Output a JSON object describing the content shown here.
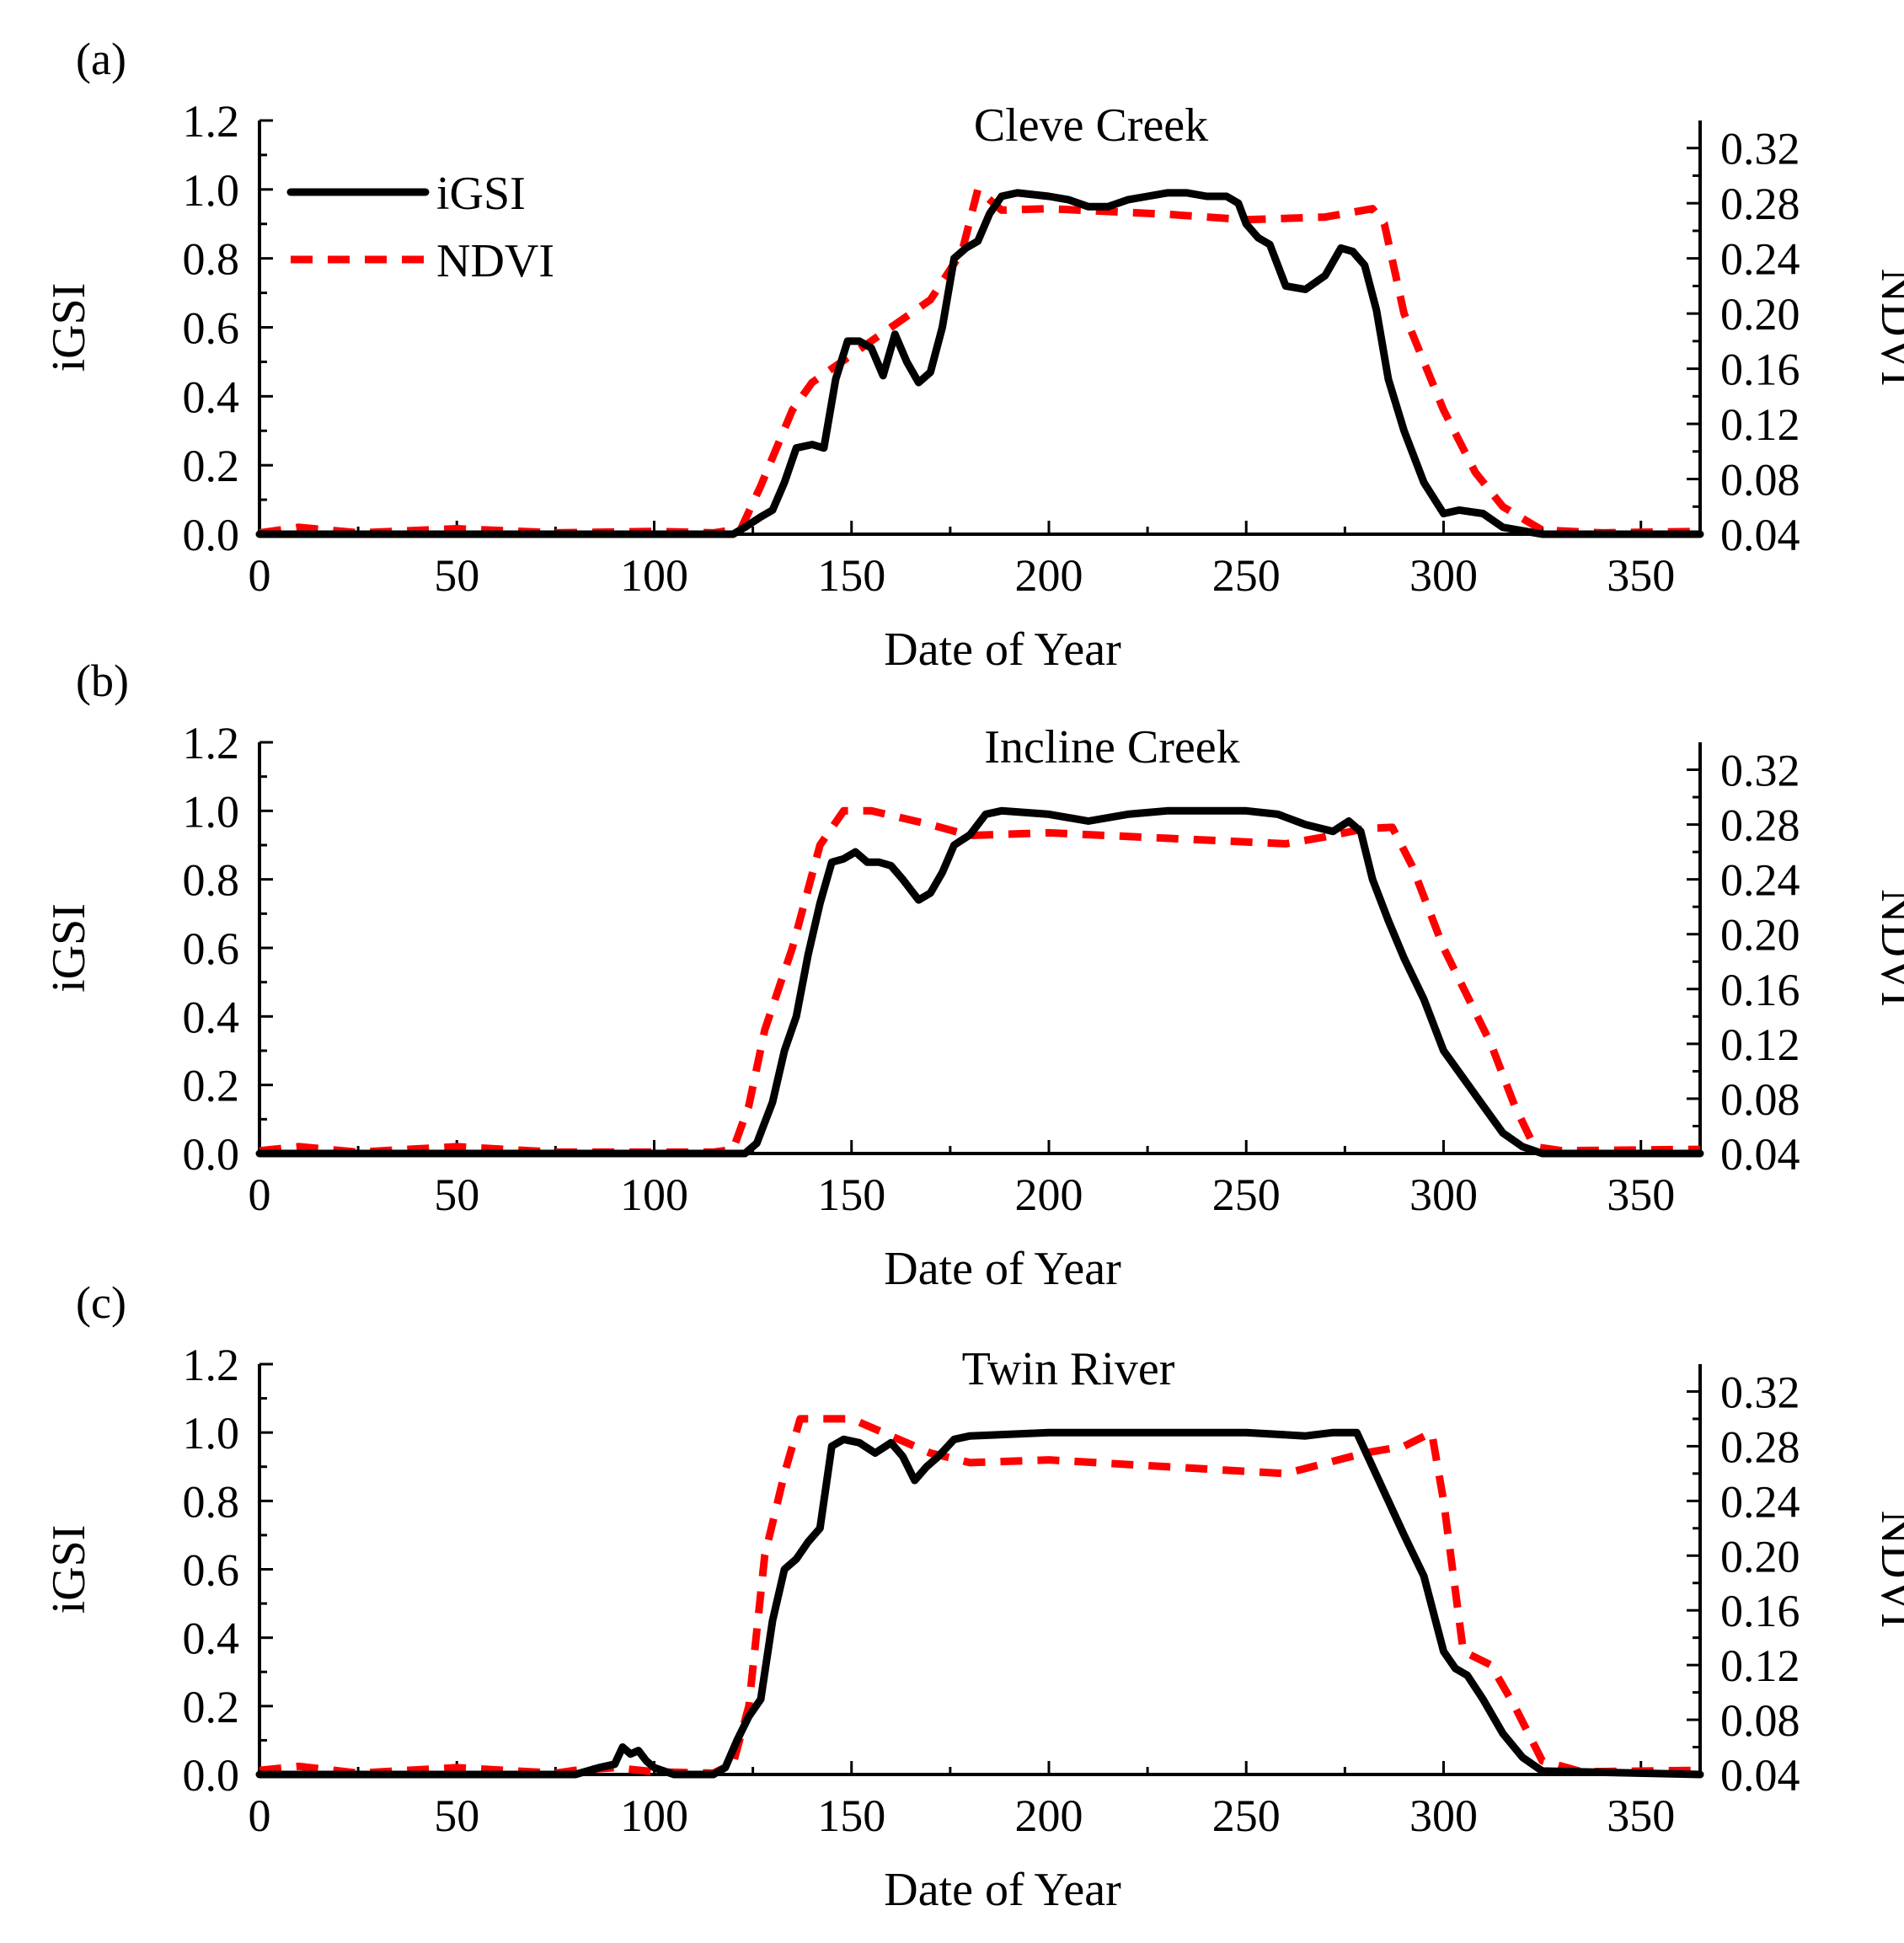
{
  "chart_data": [
    {
      "type": "line",
      "panel_label": "(a)",
      "title": "Cleve Creek",
      "xlabel": "Date of Year",
      "ylabel": "iGSI",
      "y2label": "NDVI",
      "xlim": [
        0,
        365
      ],
      "ylim": [
        0,
        1.2
      ],
      "y2lim": [
        0.04,
        0.34
      ],
      "xticks": [
        "0",
        "50",
        "100",
        "150",
        "200",
        "250",
        "300",
        "350"
      ],
      "yticks": [
        "0.0",
        "0.2",
        "0.4",
        "0.6",
        "0.8",
        "1.0",
        "1.2"
      ],
      "y2ticks": [
        "0.04",
        "0.08",
        "0.12",
        "0.16",
        "0.20",
        "0.24",
        "0.28",
        "0.32"
      ],
      "legend": {
        "placement": "top-left",
        "entries": [
          "iGSI",
          "NDVI"
        ]
      },
      "series": [
        {
          "name": "iGSI",
          "axis": "left",
          "color": "#000000",
          "x": [
            0,
            60,
            100,
            120,
            123,
            127,
            130,
            133,
            136,
            140,
            143,
            146,
            149,
            152,
            155,
            158,
            161,
            164,
            167,
            170,
            173,
            176,
            179,
            182,
            185,
            188,
            192,
            200,
            205,
            210,
            215,
            220,
            225,
            230,
            235,
            240,
            245,
            248,
            250,
            253,
            256,
            260,
            265,
            270,
            274,
            277,
            280,
            283,
            286,
            290,
            295,
            300,
            304,
            310,
            315,
            320,
            325,
            365
          ],
          "y": [
            0.0,
            0.0,
            0.0,
            0.0,
            0.02,
            0.05,
            0.07,
            0.15,
            0.25,
            0.26,
            0.25,
            0.45,
            0.56,
            0.56,
            0.54,
            0.46,
            0.58,
            0.5,
            0.44,
            0.47,
            0.6,
            0.8,
            0.83,
            0.85,
            0.93,
            0.98,
            0.99,
            0.98,
            0.97,
            0.95,
            0.95,
            0.97,
            0.98,
            0.99,
            0.99,
            0.98,
            0.98,
            0.96,
            0.9,
            0.86,
            0.84,
            0.72,
            0.71,
            0.75,
            0.83,
            0.82,
            0.78,
            0.65,
            0.45,
            0.3,
            0.15,
            0.06,
            0.07,
            0.06,
            0.02,
            0.01,
            0.0,
            0.0
          ]
        },
        {
          "name": "NDVI",
          "axis": "right",
          "color": "#ff0000",
          "x": [
            0,
            10,
            25,
            50,
            75,
            100,
            115,
            122,
            127,
            135,
            140,
            150,
            160,
            170,
            178,
            182,
            188,
            200,
            230,
            250,
            270,
            282,
            285,
            290,
            300,
            308,
            315,
            322,
            325,
            340,
            365
          ],
          "y": [
            0.041,
            0.045,
            0.041,
            0.044,
            0.041,
            0.042,
            0.041,
            0.044,
            0.075,
            0.13,
            0.15,
            0.17,
            0.19,
            0.21,
            0.245,
            0.29,
            0.275,
            0.276,
            0.272,
            0.268,
            0.27,
            0.276,
            0.265,
            0.2,
            0.13,
            0.085,
            0.06,
            0.048,
            0.043,
            0.041,
            0.042
          ]
        }
      ]
    },
    {
      "type": "line",
      "panel_label": "(b)",
      "title": "Incline Creek",
      "xlabel": "Date of Year",
      "ylabel": "iGSI",
      "y2label": "NDVI",
      "xlim": [
        0,
        365
      ],
      "ylim": [
        0,
        1.2
      ],
      "y2lim": [
        0.04,
        0.34
      ],
      "xticks": [
        "0",
        "50",
        "100",
        "150",
        "200",
        "250",
        "300",
        "350"
      ],
      "yticks": [
        "0.0",
        "0.2",
        "0.4",
        "0.6",
        "0.8",
        "1.0",
        "1.2"
      ],
      "y2ticks": [
        "0.04",
        "0.08",
        "0.12",
        "0.16",
        "0.20",
        "0.24",
        "0.28",
        "0.32"
      ],
      "series": [
        {
          "name": "iGSI",
          "axis": "left",
          "color": "#000000",
          "x": [
            0,
            60,
            100,
            123,
            126,
            130,
            133,
            136,
            139,
            142,
            145,
            148,
            151,
            154,
            157,
            160,
            163,
            167,
            170,
            173,
            176,
            180,
            184,
            188,
            200,
            210,
            220,
            230,
            250,
            258,
            265,
            272,
            276,
            279,
            282,
            286,
            290,
            295,
            300,
            305,
            310,
            315,
            320,
            325,
            365
          ],
          "y": [
            0.0,
            0.0,
            0.0,
            0.0,
            0.03,
            0.15,
            0.3,
            0.4,
            0.58,
            0.73,
            0.85,
            0.86,
            0.88,
            0.85,
            0.85,
            0.84,
            0.8,
            0.74,
            0.76,
            0.82,
            0.9,
            0.93,
            0.99,
            1.0,
            0.99,
            0.97,
            0.99,
            1.0,
            1.0,
            0.99,
            0.96,
            0.94,
            0.97,
            0.94,
            0.8,
            0.68,
            0.57,
            0.45,
            0.3,
            0.22,
            0.14,
            0.06,
            0.02,
            0.0,
            0.0
          ]
        },
        {
          "name": "NDVI",
          "axis": "right",
          "color": "#ff0000",
          "x": [
            0,
            10,
            25,
            50,
            75,
            100,
            115,
            120,
            124,
            128,
            135,
            142,
            148,
            155,
            170,
            180,
            200,
            230,
            260,
            270,
            280,
            287,
            292,
            300,
            312,
            318,
            323,
            330,
            365
          ],
          "y": [
            0.042,
            0.045,
            0.041,
            0.045,
            0.041,
            0.041,
            0.041,
            0.043,
            0.075,
            0.13,
            0.19,
            0.265,
            0.29,
            0.29,
            0.28,
            0.272,
            0.274,
            0.27,
            0.266,
            0.271,
            0.277,
            0.278,
            0.25,
            0.19,
            0.12,
            0.075,
            0.045,
            0.042,
            0.043
          ]
        }
      ]
    },
    {
      "type": "line",
      "panel_label": "(c)",
      "title": "Twin River",
      "xlabel": "Date of Year",
      "ylabel": "iGSI",
      "y2label": "NDVI",
      "xlim": [
        0,
        365
      ],
      "ylim": [
        0,
        1.2
      ],
      "y2lim": [
        0.04,
        0.34
      ],
      "xticks": [
        "0",
        "50",
        "100",
        "150",
        "200",
        "250",
        "300",
        "350"
      ],
      "yticks": [
        "0.0",
        "0.2",
        "0.4",
        "0.6",
        "0.8",
        "1.0",
        "1.2"
      ],
      "y2ticks": [
        "0.04",
        "0.08",
        "0.12",
        "0.16",
        "0.20",
        "0.24",
        "0.28",
        "0.32"
      ],
      "series": [
        {
          "name": "iGSI",
          "axis": "left",
          "color": "#000000",
          "x": [
            0,
            60,
            80,
            86,
            90,
            92,
            94,
            96,
            98,
            100,
            105,
            115,
            118,
            121,
            124,
            127,
            130,
            133,
            136,
            139,
            142,
            145,
            148,
            152,
            156,
            160,
            163,
            166,
            169,
            172,
            176,
            180,
            200,
            250,
            265,
            272,
            278,
            282,
            286,
            290,
            295,
            300,
            303,
            306,
            310,
            315,
            320,
            325,
            365
          ],
          "y": [
            0.0,
            0.0,
            0.0,
            0.02,
            0.03,
            0.08,
            0.06,
            0.07,
            0.04,
            0.02,
            0.0,
            0.0,
            0.02,
            0.1,
            0.17,
            0.22,
            0.45,
            0.6,
            0.63,
            0.68,
            0.72,
            0.96,
            0.98,
            0.97,
            0.94,
            0.97,
            0.93,
            0.86,
            0.9,
            0.93,
            0.98,
            0.99,
            1.0,
            1.0,
            0.99,
            1.0,
            1.0,
            0.9,
            0.8,
            0.7,
            0.58,
            0.36,
            0.31,
            0.29,
            0.22,
            0.12,
            0.05,
            0.01,
            0.0
          ]
        },
        {
          "name": "NDVI",
          "axis": "right",
          "color": "#ff0000",
          "x": [
            0,
            10,
            25,
            50,
            75,
            80,
            90,
            100,
            115,
            120,
            124,
            128,
            133,
            137,
            150,
            170,
            180,
            200,
            230,
            260,
            280,
            290,
            297,
            300,
            305,
            312,
            318,
            325,
            335,
            365
          ],
          "y": [
            0.043,
            0.046,
            0.041,
            0.045,
            0.041,
            0.043,
            0.045,
            0.042,
            0.041,
            0.048,
            0.09,
            0.2,
            0.26,
            0.3,
            0.3,
            0.275,
            0.268,
            0.27,
            0.265,
            0.26,
            0.275,
            0.28,
            0.29,
            0.24,
            0.13,
            0.12,
            0.09,
            0.05,
            0.042,
            0.043
          ]
        }
      ]
    }
  ]
}
